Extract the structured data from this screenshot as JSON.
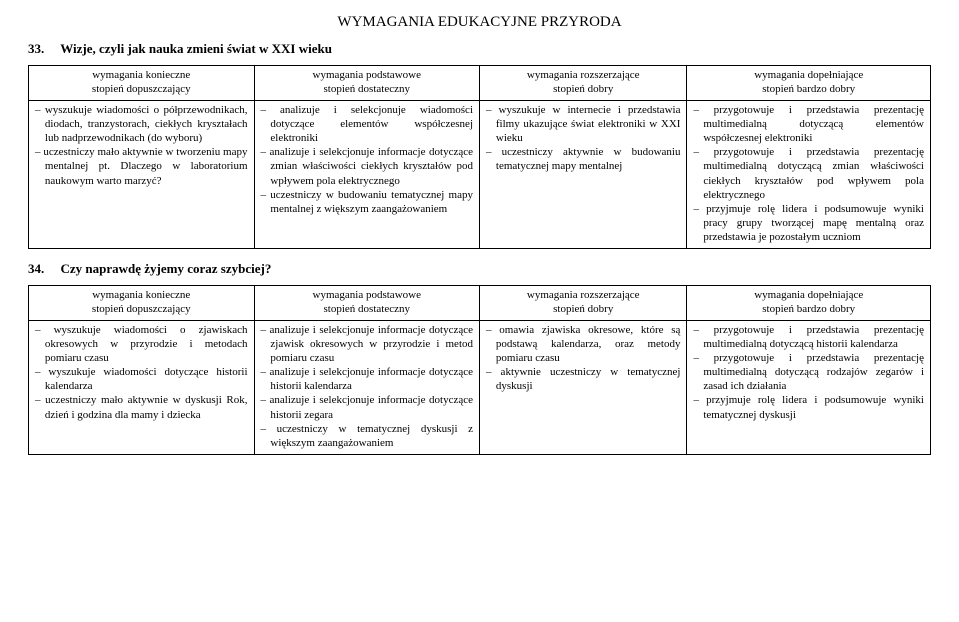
{
  "doc_title": "WYMAGANIA EDUKACYJNE PRZYRODA",
  "section33": {
    "number": "33.",
    "title": "Wizje, czyli jak nauka zmieni świat w XXI wieku",
    "headers": [
      [
        "wymagania konieczne",
        "stopień dopuszczający"
      ],
      [
        "wymagania podstawowe",
        "stopień dostateczny"
      ],
      [
        "wymagania rozszerzające",
        "stopień dobry"
      ],
      [
        "wymagania dopełniające",
        "stopień bardzo dobry"
      ]
    ],
    "col1": "– wyszukuje wiadomości o półprzewodnikach, diodach, tranzystorach, ciekłych kryształach lub nadprzewodnikach (do wyboru)\n– uczestniczy mało aktywnie w tworzeniu mapy mentalnej pt. Dlaczego w laboratorium naukowym warto marzyć?",
    "col2": "– analizuje i selekcjonuje wiadomości dotyczące elementów współczesnej elektroniki\n– analizuje i selekcjonuje informacje dotyczące zmian właściwości ciekłych kryształów pod wpływem pola elektrycznego\n– uczestniczy w budowaniu tematycznej mapy mentalnej z większym zaangażowaniem",
    "col3": "– wyszukuje w internecie i przedstawia filmy ukazujące świat elektroniki w XXI wieku\n– uczestniczy aktywnie w budowaniu tematycznej mapy mentalnej",
    "col4": "– przygotowuje i przedstawia prezentację multimedialną dotyczącą elementów współczesnej elektroniki\n– przygotowuje i przedstawia prezentację multimedialną dotyczącą zmian właściwości ciekłych kryształów pod wpływem pola elektrycznego\n– przyjmuje rolę lidera i podsumowuje wyniki pracy grupy tworzącej mapę mentalną oraz przedstawia je pozostałym uczniom"
  },
  "section34": {
    "number": "34.",
    "title": "Czy naprawdę żyjemy coraz szybciej?",
    "headers": [
      [
        "wymagania konieczne",
        "stopień dopuszczający"
      ],
      [
        "wymagania podstawowe",
        "stopień dostateczny"
      ],
      [
        "wymagania rozszerzające",
        "stopień dobry"
      ],
      [
        "wymagania dopełniające",
        "stopień bardzo dobry"
      ]
    ],
    "col1": "– wyszukuje wiadomości o zjawiskach okresowych w przyrodzie i metodach pomiaru czasu\n– wyszukuje wiadomości dotyczące historii kalendarza\n– uczestniczy mało aktywnie w dyskusji Rok, dzień i godzina dla mamy i dziecka",
    "col2": "– analizuje i selekcjonuje informacje dotyczące zjawisk okresowych w przyrodzie i metod pomiaru czasu\n– analizuje i selekcjonuje informacje dotyczące historii kalendarza\n– analizuje i selekcjonuje informacje dotyczące historii zegara\n– uczestniczy w tematycznej dyskusji z większym zaangażowaniem",
    "col3": "– omawia zjawiska okresowe, które są podstawą kalendarza, oraz metody pomiaru czasu\n– aktywnie uczestniczy w tematycznej dyskusji",
    "col4": "– przygotowuje i przedstawia prezentację multimedialną dotyczącą historii kalendarza\n– przygotowuje i przedstawia prezentację multimedialną dotyczącą rodzajów zegarów i zasad ich działania\n– przyjmuje rolę lidera i podsumowuje wyniki tematycznej dyskusji"
  },
  "colwidths": [
    "25%",
    "25%",
    "23%",
    "27%"
  ]
}
